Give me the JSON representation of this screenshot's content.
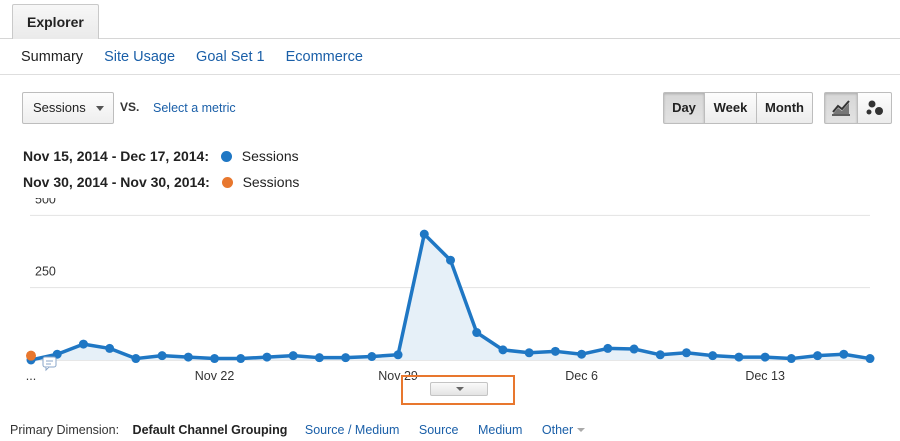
{
  "explorer_tab": "Explorer",
  "subtabs": [
    "Summary",
    "Site Usage",
    "Goal Set 1",
    "Ecommerce"
  ],
  "metric_selector": {
    "selected": "Sessions",
    "vs_label": "VS.",
    "select_metric_link": "Select a metric"
  },
  "period_buttons": [
    "Day",
    "Week",
    "Month"
  ],
  "period_active": "Day",
  "chart_type_buttons": [
    "line-chart-icon",
    "motion-chart-icon"
  ],
  "legend": [
    {
      "range": "Nov 15, 2014 - Dec 17, 2014:",
      "series": "Sessions",
      "color": "#1f77c4"
    },
    {
      "range": "Nov 30, 2014 - Nov 30, 2014:",
      "series": "Sessions",
      "color": "#e8772e"
    }
  ],
  "chart_data": {
    "type": "area",
    "y_ticks": [
      "500",
      "250"
    ],
    "ylim": [
      0,
      560
    ],
    "x_tick_labels": [
      "...",
      "Nov 22",
      "Nov 29",
      "Dec 6",
      "Dec 13"
    ],
    "x_tick_dates": [
      "Nov 15",
      "Nov 22",
      "Nov 29",
      "Dec 6",
      "Dec 13"
    ],
    "grid": true,
    "series": [
      {
        "name": "Sessions",
        "color": "#1f77c4",
        "x": [
          "Nov 15",
          "Nov 16",
          "Nov 17",
          "Nov 18",
          "Nov 19",
          "Nov 20",
          "Nov 21",
          "Nov 22",
          "Nov 23",
          "Nov 24",
          "Nov 25",
          "Nov 26",
          "Nov 27",
          "Nov 28",
          "Nov 29",
          "Nov 30",
          "Dec 1",
          "Dec 2",
          "Dec 3",
          "Dec 4",
          "Dec 5",
          "Dec 6",
          "Dec 7",
          "Dec 8",
          "Dec 9",
          "Dec 10",
          "Dec 11",
          "Dec 12",
          "Dec 13",
          "Dec 14",
          "Dec 15",
          "Dec 16",
          "Dec 17"
        ],
        "values": [
          0,
          20,
          55,
          40,
          5,
          15,
          10,
          5,
          5,
          10,
          15,
          8,
          8,
          12,
          18,
          435,
          345,
          95,
          35,
          25,
          30,
          20,
          40,
          38,
          18,
          25,
          15,
          10,
          10,
          5,
          15,
          20,
          5
        ]
      },
      {
        "name": "Sessions",
        "color": "#e8772e",
        "x": [
          "Nov 15"
        ],
        "values": [
          15
        ]
      }
    ]
  },
  "dimension": {
    "label": "Primary Dimension:",
    "current": "Default Channel Grouping",
    "options": [
      "Source / Medium",
      "Source",
      "Medium",
      "Other"
    ]
  }
}
